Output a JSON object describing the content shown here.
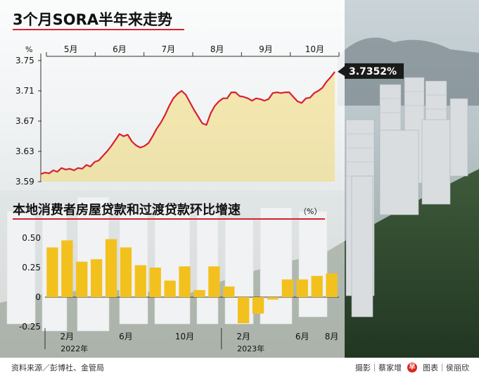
{
  "chart_data": [
    {
      "type": "line",
      "title": "3个月SORA半年来走势",
      "y_unit": "%",
      "ylim": [
        3.59,
        3.75
      ],
      "yticks": [
        "3.75",
        "3.71",
        "3.67",
        "3.63",
        "3.59"
      ],
      "month_labels": [
        "5月",
        "6月",
        "7月",
        "8月",
        "9月",
        "10月"
      ],
      "latest_label": "3.7352%",
      "series": [
        {
          "values": [
            3.6,
            3.602,
            3.601,
            3.605,
            3.603,
            3.608,
            3.606,
            3.607,
            3.605,
            3.608,
            3.607,
            3.612,
            3.61,
            3.616,
            3.618,
            3.624,
            3.63,
            3.637,
            3.645,
            3.653,
            3.65,
            3.652,
            3.643,
            3.638,
            3.635,
            3.637,
            3.641,
            3.65,
            3.66,
            3.668,
            3.678,
            3.69,
            3.7,
            3.706,
            3.71,
            3.705,
            3.695,
            3.685,
            3.676,
            3.667,
            3.665,
            3.68,
            3.69,
            3.696,
            3.7,
            3.7,
            3.708,
            3.708,
            3.703,
            3.702,
            3.7,
            3.697,
            3.7,
            3.699,
            3.697,
            3.699,
            3.707,
            3.708,
            3.707,
            3.708,
            3.708,
            3.702,
            3.696,
            3.694,
            3.7,
            3.701,
            3.707,
            3.71,
            3.714,
            3.722,
            3.728,
            3.7352
          ]
        }
      ],
      "grid": false
    },
    {
      "type": "bar",
      "title": "本地消费者房屋贷款和过渡贷款环比增速",
      "y_unit": "（%）",
      "ylim": [
        -0.25,
        0.5
      ],
      "yticks": [
        "0.50",
        "0.25",
        "0",
        "-0.25"
      ],
      "x_labels": [
        {
          "label": "2月",
          "index": 1
        },
        {
          "label": "6月",
          "index": 5
        },
        {
          "label": "10月",
          "index": 9
        },
        {
          "label": "2月",
          "index": 13
        },
        {
          "label": "6月",
          "index": 17
        },
        {
          "label": "8月",
          "index": 19
        }
      ],
      "year_labels": [
        {
          "label": "2022年",
          "index": 1.5
        },
        {
          "label": "2023年",
          "index": 13.5
        }
      ],
      "values": [
        0.42,
        0.48,
        0.3,
        0.32,
        0.49,
        0.42,
        0.27,
        0.25,
        0.14,
        0.26,
        0.06,
        0.26,
        0.09,
        -0.22,
        -0.14,
        -0.02,
        0.15,
        0.15,
        0.18,
        0.2
      ],
      "grid": false
    }
  ],
  "colors": {
    "line": "#d8202e",
    "line_fill": "#f5d55a",
    "bar": "#f3c11e",
    "title_underline": "#d8202e",
    "label_box": "#1a1a1a"
  },
  "footer": {
    "source": "资料来源／彭博社、金管局",
    "photo": "摄影｜蔡家增",
    "graphic": "图表｜侯丽欣",
    "logo_text": "早"
  }
}
